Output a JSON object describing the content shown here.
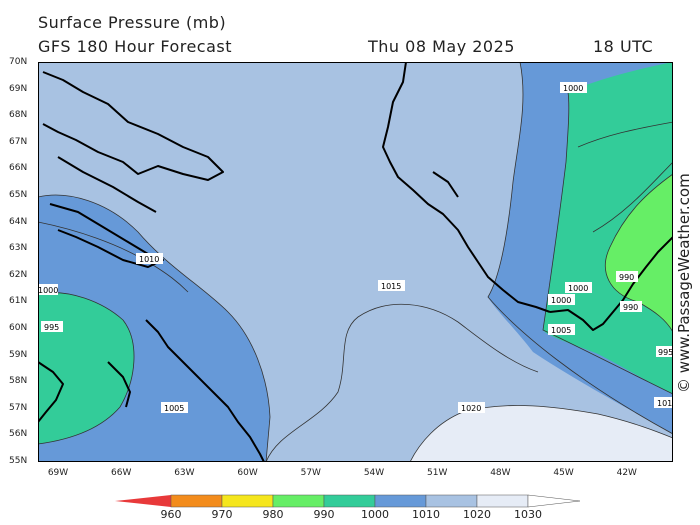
{
  "header": {
    "title": "Surface Pressure (mb)",
    "subtitle": "GFS 180 Hour Forecast",
    "date": "Thu 08 May 2025",
    "time": "18 UTC"
  },
  "credit": "© www.PassageWeather.com",
  "axes": {
    "lat_labels": [
      "70N",
      "69N",
      "68N",
      "67N",
      "66N",
      "65N",
      "64N",
      "63N",
      "62N",
      "61N",
      "60N",
      "59N",
      "58N",
      "57N",
      "56N",
      "55N"
    ],
    "lon_labels": [
      "69W",
      "66W",
      "63W",
      "60W",
      "57W",
      "54W",
      "51W",
      "48W",
      "45W",
      "42W"
    ]
  },
  "isobar_labels": [
    "1000",
    "1010",
    "1000",
    "1015",
    "1000",
    "1000",
    "990",
    "990",
    "1005",
    "995",
    "995",
    "1005",
    "1020",
    "101"
  ],
  "legend": {
    "values": [
      "960",
      "970",
      "980",
      "990",
      "1000",
      "1010",
      "1020",
      "1030"
    ],
    "colors": [
      "#e8393a",
      "#f38c1c",
      "#f5e61d",
      "#66ee66",
      "#33cc99",
      "#6699d8",
      "#a8c2e2",
      "#e6ecf6"
    ]
  },
  "colors": {
    "band_990_1000": "#33cc99",
    "band_980_990": "#66ee66",
    "band_1000_1010": "#6699d8",
    "band_1010_1020": "#a8c2e2",
    "band_1020_1030": "#e6ecf6",
    "coast": "#000000"
  }
}
